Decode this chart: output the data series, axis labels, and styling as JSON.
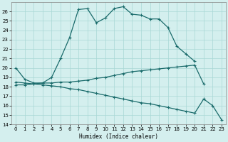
{
  "xlabel": "Humidex (Indice chaleur)",
  "ylabel": "",
  "bg_color": "#d4efee",
  "grid_color": "#a8d8d5",
  "line_color": "#1a6b6b",
  "xlim": [
    -0.5,
    23.5
  ],
  "ylim": [
    14,
    27
  ],
  "yticks": [
    14,
    15,
    16,
    17,
    18,
    19,
    20,
    21,
    22,
    23,
    24,
    25,
    26
  ],
  "xticks": [
    0,
    1,
    2,
    3,
    4,
    5,
    6,
    7,
    8,
    9,
    10,
    11,
    12,
    13,
    14,
    15,
    16,
    17,
    18,
    19,
    20,
    21,
    22,
    23
  ],
  "series1_y": [
    20.0,
    18.8,
    18.4,
    18.4,
    19.0,
    21.0,
    23.2,
    26.2,
    26.3,
    24.8,
    25.3,
    26.3,
    26.5,
    25.7,
    25.6,
    25.2,
    25.2,
    24.3,
    22.3,
    21.5,
    20.7,
    null,
    null,
    null
  ],
  "series2_y": [
    18.2,
    18.2,
    18.3,
    18.4,
    18.4,
    18.5,
    18.5,
    18.6,
    18.7,
    18.9,
    19.0,
    19.2,
    19.4,
    19.6,
    19.7,
    19.8,
    19.9,
    20.0,
    20.1,
    20.2,
    20.3,
    18.3,
    null,
    null
  ],
  "series3_y": [
    18.5,
    18.4,
    18.3,
    18.2,
    18.1,
    18.0,
    17.8,
    17.7,
    17.5,
    17.3,
    17.1,
    16.9,
    16.7,
    16.5,
    16.3,
    16.2,
    16.0,
    15.8,
    15.6,
    15.4,
    15.2,
    16.7,
    16.0,
    14.5
  ]
}
